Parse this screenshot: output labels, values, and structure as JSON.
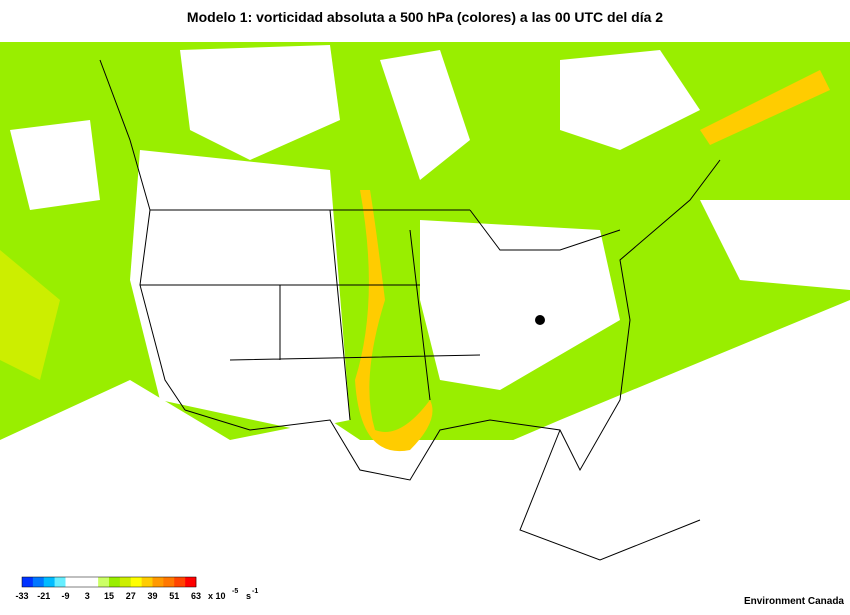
{
  "title": "Modelo 1: vorticidad absoluta a 500 hPa (colores) a las 00 UTC del día 2",
  "legend": {
    "ticks": [
      -33,
      -21,
      -9,
      3,
      15,
      27,
      39,
      51,
      63
    ],
    "colors": [
      "#0033ff",
      "#0077ff",
      "#00bbff",
      "#66eeff",
      "#ffffff",
      "#ffffff",
      "#ffffff",
      "#ccff66",
      "#99ee00",
      "#ccee00",
      "#ffff00",
      "#ffcc00",
      "#ff9900",
      "#ff7700",
      "#ff4400",
      "#ff0000"
    ],
    "unit": {
      "prefix": "x 10",
      "exponent": "-5",
      "base": "s",
      "base_exponent": "-1"
    }
  },
  "credit": "Environment Canada"
}
